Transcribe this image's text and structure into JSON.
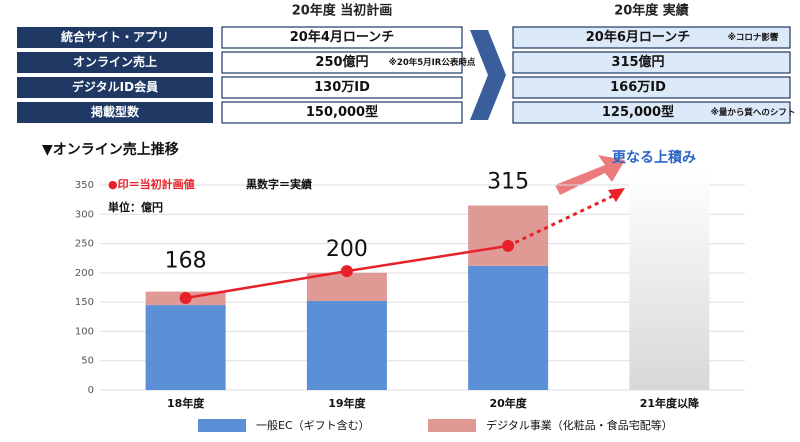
{
  "table": {
    "headers": [
      "20年度 当初計画",
      "20年度 実績"
    ],
    "rows": [
      {
        "label": "統合サイト・アプリ",
        "plan": "20年4月ローンチ",
        "actual": "20年6月ローンチ",
        "actual_note": "※コロナ影響"
      },
      {
        "label": "オンライン売上",
        "plan": "250億円",
        "plan_note": "※20年5月IR公表時点",
        "actual": "315億円"
      },
      {
        "label": "デジタルID会員",
        "plan": "130万ID",
        "actual": "166万ID"
      },
      {
        "label": "掲載型数",
        "plan": "150,000型",
        "actual": "125,000型",
        "actual_note": "※量から質へのシフト"
      }
    ]
  },
  "chart_data": {
    "type": "bar",
    "title": "▼オンライン売上推移",
    "categories": [
      "18年度",
      "19年度",
      "20年度",
      "21年度以降"
    ],
    "series": [
      {
        "name": "一般EC（ギフト含む）",
        "color": "#5b8fd6",
        "values": [
          145,
          152,
          212,
          null
        ]
      },
      {
        "name": "デジタル事業（化粧品・食品宅配等）",
        "color": "#e09a96",
        "values": [
          23,
          48,
          103,
          null
        ]
      }
    ],
    "totals": [
      168,
      200,
      315,
      null
    ],
    "line": {
      "name": "●印＝当初計画値",
      "color": "#e8202a",
      "values": [
        157,
        203,
        246,
        null
      ]
    },
    "note": "黒数字＝実績",
    "unit": "単位：億円",
    "annotation": "更なる上積み",
    "stacked": true,
    "ylim": [
      0,
      350
    ],
    "yticks": [
      0,
      50,
      100,
      150,
      200,
      250,
      300,
      350
    ],
    "grid": true
  }
}
